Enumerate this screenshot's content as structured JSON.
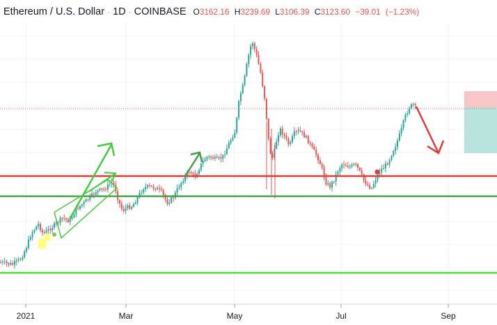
{
  "header": {
    "symbol": "Ethereum / U.S. Dollar",
    "interval": "1D",
    "exchange": "COINBASE",
    "open_key": "O",
    "open": "3162.16",
    "high_key": "H",
    "high": "3239.69",
    "low_key": "L",
    "low": "3106.39",
    "close_key": "C",
    "close": "3123.60",
    "change": "−39.01",
    "change_pct": "(−1.23%)"
  },
  "chart_data": {
    "type": "candlestick",
    "title": "Ethereum / U.S. Dollar · 1D · COINBASE",
    "x_tick_labels": [
      "2021",
      "Mar",
      "May",
      "Jul",
      "Sep"
    ],
    "ohlc_last": {
      "open": 3162.16,
      "high": 3239.69,
      "low": 3106.39,
      "close": 3123.6,
      "change": -39.01,
      "change_pct": -1.23
    },
    "colors": {
      "up": "#26a69a",
      "down": "#ef5350",
      "resistance": "#e53935",
      "support": "#43a047",
      "lower_support": "#4cdd37",
      "arrow_up": "#3fcf3a",
      "arrow_down": "#e53935",
      "highlight": "#ffff66",
      "marker_green": "#8bc34a",
      "marker_red": "#e53935",
      "risk_zone": "#f8c6c6",
      "reward_zone": "#b9e3dd"
    },
    "annotations": [
      "horizontal resistance line",
      "horizontal support line",
      "lower support line",
      "upward trend arrows",
      "downward projection arrow",
      "risk/reward position box"
    ],
    "grid": false,
    "legend": "none"
  }
}
